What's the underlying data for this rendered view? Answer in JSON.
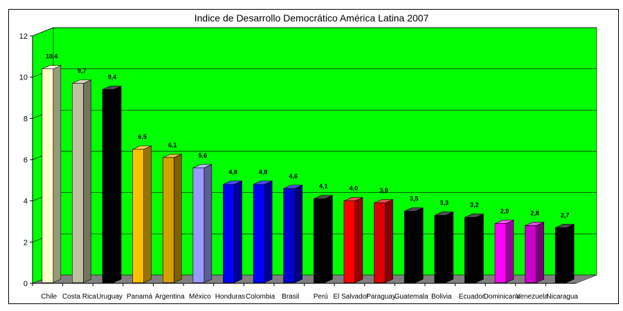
{
  "chart_data": {
    "type": "bar",
    "title": "Indice de Desarrollo Democrático América Latina 2007",
    "xlabel": "",
    "ylabel": "",
    "ylim": [
      0,
      12
    ],
    "yticks": [
      0,
      2,
      4,
      6,
      8,
      10,
      12
    ],
    "grid": true,
    "categories": [
      "Chile",
      "Costa Rica",
      "Uruguay",
      "Panamá",
      "Argentina",
      "México",
      "Honduras",
      "Colombia",
      "Brasil",
      "Perú",
      "El Salvador",
      "Paraguay",
      "Guatemala",
      "Bolivia",
      "Ecuador",
      "Dominicana",
      "Venezuela",
      "Nicaragua"
    ],
    "values": [
      10.4,
      9.7,
      9.4,
      6.5,
      6.1,
      5.6,
      4.8,
      4.8,
      4.6,
      4.1,
      4.0,
      3.9,
      3.5,
      3.3,
      3.2,
      2.9,
      2.8,
      2.7
    ],
    "data_labels": [
      "10,4",
      "9,7",
      "9,4",
      "6,5",
      "6,1",
      "5,6",
      "4,8",
      "4,8",
      "4,6",
      "4,1",
      "4,0",
      "3,9",
      "3,5",
      "3,3",
      "3,2",
      "2,9",
      "2,8",
      "2,7"
    ],
    "bar_colors": [
      "#ffffcc",
      "#c0c0a0",
      "#000000",
      "#ffc000",
      "#d4a000",
      "#9999ff",
      "#0000ff",
      "#0000ff",
      "#0000d0",
      "#000000",
      "#ff0000",
      "#dd0000",
      "#000000",
      "#000000",
      "#000000",
      "#ff00ff",
      "#cc00cc",
      "#000000"
    ],
    "wall_color": "#00ff00",
    "floor_color": "#808080"
  }
}
